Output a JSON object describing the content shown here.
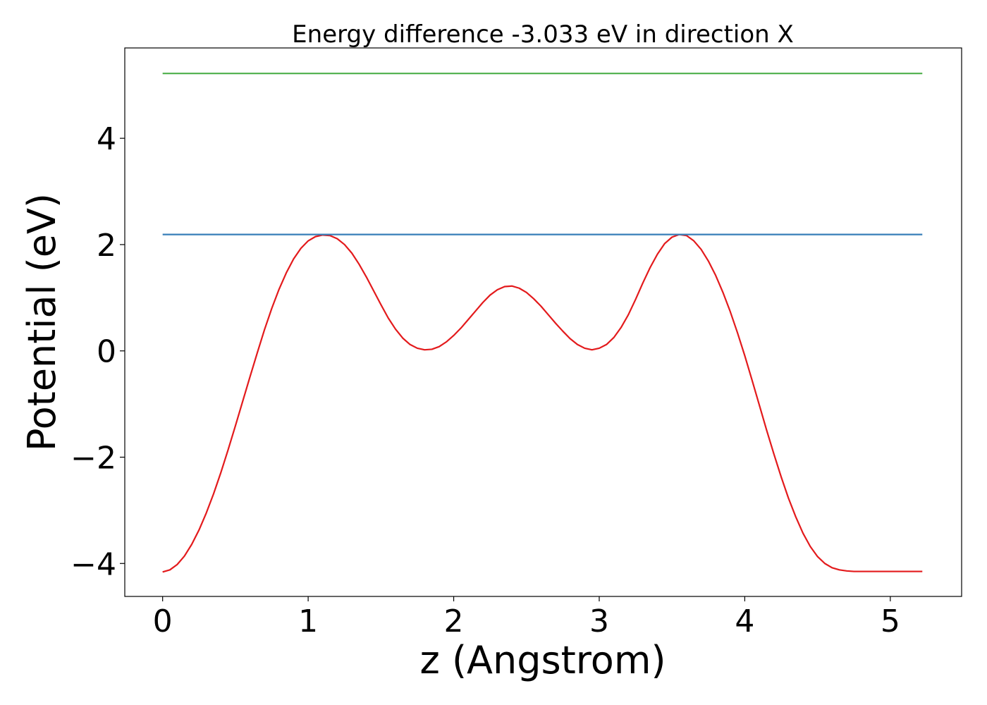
{
  "chart_data": {
    "type": "line",
    "title": "Energy difference -3.033 eV in direction X",
    "xlabel": "z (Angstrom)",
    "ylabel": "Potential (eV)",
    "xlim": [
      -0.26,
      5.49
    ],
    "ylim": [
      -4.62,
      5.7
    ],
    "xticks": [
      0,
      1,
      2,
      3,
      4,
      5
    ],
    "yticks": [
      -4,
      -2,
      0,
      2,
      4
    ],
    "xtick_labels": [
      "0",
      "1",
      "2",
      "3",
      "4",
      "5"
    ],
    "ytick_labels": [
      "−4",
      "−2",
      "0",
      "2",
      "4"
    ],
    "grid": false,
    "legend": "none",
    "series": [
      {
        "color": "#e31a1c",
        "x": [
          0.0,
          0.05,
          0.1,
          0.15,
          0.2,
          0.25,
          0.3,
          0.35,
          0.4,
          0.45,
          0.5,
          0.55,
          0.6,
          0.65,
          0.7,
          0.75,
          0.8,
          0.85,
          0.9,
          0.95,
          1.0,
          1.05,
          1.1,
          1.15,
          1.2,
          1.25,
          1.3,
          1.35,
          1.4,
          1.45,
          1.5,
          1.55,
          1.6,
          1.65,
          1.7,
          1.75,
          1.8,
          1.85,
          1.9,
          1.95,
          2.0,
          2.05,
          2.1,
          2.15,
          2.2,
          2.25,
          2.3,
          2.35,
          2.4,
          2.45,
          2.5,
          2.55,
          2.6,
          2.65,
          2.7,
          2.75,
          2.8,
          2.85,
          2.9,
          2.95,
          3.0,
          3.05,
          3.1,
          3.15,
          3.2,
          3.25,
          3.3,
          3.35,
          3.4,
          3.45,
          3.5,
          3.55,
          3.6,
          3.65,
          3.7,
          3.75,
          3.8,
          3.85,
          3.9,
          3.95,
          4.0,
          4.05,
          4.1,
          4.15,
          4.2,
          4.25,
          4.3,
          4.35,
          4.4,
          4.45,
          4.5,
          4.55,
          4.6,
          4.65,
          4.7,
          4.75,
          4.8,
          4.85,
          4.9,
          4.95,
          5.0,
          5.05,
          5.1,
          5.15,
          5.22
        ],
        "y": [
          -4.16,
          -4.12,
          -4.02,
          -3.86,
          -3.64,
          -3.37,
          -3.05,
          -2.69,
          -2.29,
          -1.86,
          -1.41,
          -0.95,
          -0.49,
          -0.04,
          0.4,
          0.8,
          1.16,
          1.47,
          1.73,
          1.93,
          2.07,
          2.15,
          2.18,
          2.17,
          2.11,
          2.0,
          1.84,
          1.63,
          1.39,
          1.13,
          0.87,
          0.62,
          0.41,
          0.24,
          0.12,
          0.05,
          0.02,
          0.03,
          0.08,
          0.17,
          0.29,
          0.43,
          0.59,
          0.75,
          0.91,
          1.05,
          1.15,
          1.21,
          1.22,
          1.18,
          1.1,
          0.98,
          0.84,
          0.68,
          0.52,
          0.37,
          0.23,
          0.12,
          0.05,
          0.02,
          0.05,
          0.12,
          0.25,
          0.44,
          0.68,
          0.97,
          1.28,
          1.57,
          1.82,
          2.02,
          2.14,
          2.19,
          2.17,
          2.07,
          1.91,
          1.69,
          1.42,
          1.1,
          0.74,
          0.34,
          -0.09,
          -0.55,
          -1.02,
          -1.49,
          -1.94,
          -2.37,
          -2.77,
          -3.12,
          -3.43,
          -3.68,
          -3.87,
          -4.0,
          -4.08,
          -4.12,
          -4.14,
          -4.15,
          -4.15,
          -4.15,
          -4.15,
          -4.15,
          -4.15,
          -4.15,
          -4.15,
          -4.15,
          -4.15
        ]
      },
      {
        "color": "#377eb8",
        "x": [
          0.0,
          5.22
        ],
        "y": [
          2.19,
          2.19
        ]
      },
      {
        "color": "#4daf4a",
        "x": [
          0.0,
          5.22
        ],
        "y": [
          5.22,
          5.22
        ]
      }
    ]
  }
}
